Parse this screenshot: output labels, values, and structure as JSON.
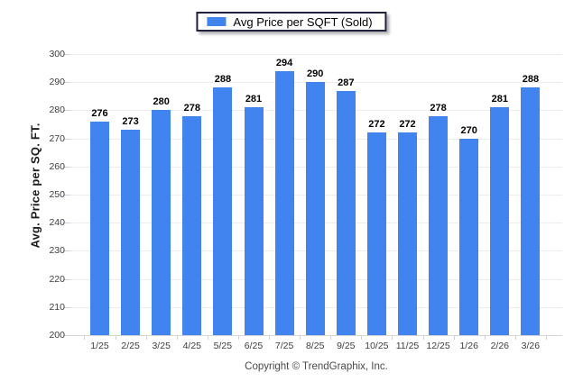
{
  "colors": {
    "bar": "#4184f0",
    "legend_border": "#202040",
    "gridline": "#ededed",
    "axis_text": "#3d3d3d",
    "value_label": "#000000",
    "footer_text": "#4a4a4a"
  },
  "legend": {
    "label": "Avg Price per SQFT (Sold)"
  },
  "footer": {
    "copyright": "Copyright © TrendGraphix, Inc."
  },
  "chart_data": {
    "type": "bar",
    "title": "",
    "ylabel": "Avg. Price per SQ. FT.",
    "xlabel": "",
    "legend_entries": [
      "Avg Price per SQFT (Sold)"
    ],
    "legend_position": "top-center",
    "grid": "horizontal",
    "value_labels": true,
    "ylim": [
      200,
      300
    ],
    "ytick_step": 10,
    "categories": [
      "1/25",
      "2/25",
      "3/25",
      "4/25",
      "5/25",
      "6/25",
      "7/25",
      "8/25",
      "9/25",
      "10/25",
      "11/25",
      "12/25",
      "1/26",
      "2/26",
      "3/26"
    ],
    "values": [
      276,
      273,
      280,
      278,
      288,
      281,
      294,
      290,
      287,
      272,
      272,
      278,
      270,
      281,
      288
    ]
  }
}
